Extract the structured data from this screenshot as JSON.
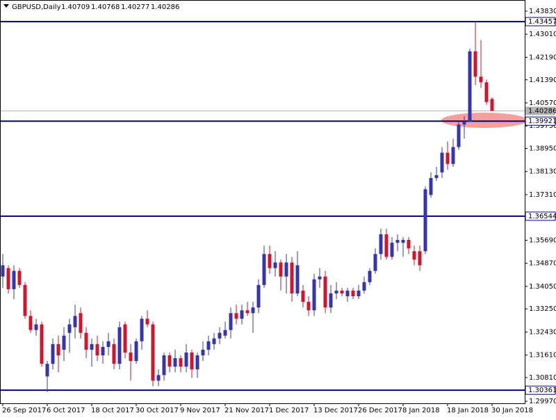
{
  "chart_data": {
    "type": "candlestick",
    "title": "GBPUSD,Daily",
    "up_color": "#3535b0",
    "down_color": "#d2142d",
    "level_color": "#000080",
    "current_color": "#b4b4b4",
    "ylim": [
      1.29896,
      1.44225
    ],
    "yticks": [
      {
        "value": 1.4383,
        "label": "1.43830"
      },
      {
        "value": 1.4301,
        "label": "1.43010"
      },
      {
        "value": 1.4219,
        "label": "1.42190"
      },
      {
        "value": 1.4139,
        "label": "1.41390"
      },
      {
        "value": 1.4057,
        "label": "1.40570"
      },
      {
        "value": 1.3975,
        "label": "1.39750"
      },
      {
        "value": 1.3895,
        "label": "1.38950"
      },
      {
        "value": 1.3813,
        "label": "1.38130"
      },
      {
        "value": 1.3731,
        "label": "1.37310"
      },
      {
        "value": 1.3569,
        "label": "1.35690"
      },
      {
        "value": 1.3487,
        "label": "1.34870"
      },
      {
        "value": 1.3405,
        "label": "1.34050"
      },
      {
        "value": 1.3325,
        "label": "1.33250"
      },
      {
        "value": 1.3243,
        "label": "1.32430"
      },
      {
        "value": 1.3161,
        "label": "1.31610"
      },
      {
        "value": 1.3081,
        "label": "1.30810"
      },
      {
        "value": 1.2997,
        "label": "1.29970"
      }
    ],
    "levels": [
      1.43457,
      1.39921,
      1.36544,
      1.30361
    ],
    "categories": [
      "26 Sep 2017",
      null,
      null,
      null,
      null,
      null,
      null,
      null,
      "6 Oct 2017",
      null,
      null,
      null,
      null,
      null,
      null,
      null,
      "18 Oct 2017",
      null,
      null,
      null,
      null,
      null,
      null,
      null,
      "30 Oct 2017",
      null,
      null,
      null,
      null,
      null,
      null,
      null,
      "9 Nov 2017",
      null,
      null,
      null,
      null,
      null,
      null,
      null,
      "21 Nov 2017",
      null,
      null,
      null,
      null,
      null,
      null,
      null,
      "1 Dec 2017",
      null,
      null,
      null,
      null,
      null,
      null,
      null,
      "13 Dec 2017",
      null,
      null,
      null,
      null,
      null,
      null,
      null,
      "26 Dec 2017",
      null,
      null,
      null,
      null,
      null,
      null,
      null,
      "8 Jan 2018",
      null,
      null,
      null,
      null,
      null,
      null,
      null,
      "18 Jan 2018",
      null,
      null,
      null,
      null,
      null,
      null,
      null,
      "30 Jan 2018"
    ],
    "open": [
      1.344,
      1.347,
      1.3395,
      1.346,
      1.341,
      1.33,
      1.325,
      1.327,
      1.3085,
      1.313,
      1.32,
      1.318,
      1.324,
      1.326,
      1.331,
      1.324,
      1.318,
      1.32,
      1.316,
      1.319,
      1.32,
      1.313,
      1.327,
      1.317,
      1.314,
      1.321,
      1.329,
      1.327,
      1.307,
      1.309,
      1.316,
      1.312,
      1.315,
      1.312,
      1.317,
      1.311,
      1.316,
      1.318,
      1.32,
      1.322,
      1.323,
      1.325,
      1.331,
      1.329,
      1.332,
      1.331,
      1.333,
      1.341,
      1.352,
      1.347,
      1.349,
      1.344,
      1.349,
      1.338,
      1.339,
      1.335,
      1.332,
      1.343,
      1.344,
      1.333,
      1.338,
      1.339,
      1.337,
      1.339,
      1.337,
      1.339,
      1.342,
      1.346,
      1.352,
      1.359,
      1.351,
      1.356,
      1.356,
      1.357,
      1.353,
      1.353,
      1.353,
      1.373,
      1.379,
      1.381,
      1.388,
      1.384,
      1.39,
      1.398,
      1.399,
      1.424,
      1.415,
      1.413,
      1.40709
    ],
    "high": [
      1.352,
      1.348,
      1.348,
      1.347,
      1.342,
      1.332,
      1.329,
      1.328,
      1.314,
      1.322,
      1.323,
      1.326,
      1.329,
      1.334,
      1.333,
      1.326,
      1.322,
      1.323,
      1.321,
      1.324,
      1.322,
      1.328,
      1.328,
      1.32,
      1.322,
      1.33,
      1.332,
      1.328,
      1.311,
      1.317,
      1.317,
      1.318,
      1.316,
      1.32,
      1.318,
      1.317,
      1.321,
      1.323,
      1.324,
      1.326,
      1.328,
      1.333,
      1.334,
      1.334,
      1.335,
      1.335,
      1.343,
      1.355,
      1.355,
      1.353,
      1.35,
      1.352,
      1.351,
      1.353,
      1.341,
      1.337,
      1.345,
      1.347,
      1.346,
      1.341,
      1.342,
      1.34,
      1.34,
      1.34,
      1.341,
      1.344,
      1.347,
      1.354,
      1.361,
      1.361,
      1.358,
      1.359,
      1.358,
      1.358,
      1.355,
      1.355,
      1.376,
      1.381,
      1.383,
      1.39,
      1.392,
      1.393,
      1.399,
      1.401,
      1.425,
      1.4346,
      1.428,
      1.414,
      1.40768
    ],
    "low": [
      1.34,
      1.338,
      1.336,
      1.34,
      1.329,
      1.324,
      1.323,
      1.312,
      1.303,
      1.311,
      1.31,
      1.314,
      1.317,
      1.322,
      1.322,
      1.315,
      1.312,
      1.314,
      1.313,
      1.316,
      1.311,
      1.311,
      1.315,
      1.307,
      1.313,
      1.318,
      1.326,
      1.305,
      1.305,
      1.307,
      1.31,
      1.31,
      1.31,
      1.31,
      1.308,
      1.308,
      1.314,
      1.316,
      1.318,
      1.32,
      1.322,
      1.322,
      1.327,
      1.327,
      1.33,
      1.324,
      1.331,
      1.34,
      1.345,
      1.344,
      1.339,
      1.338,
      1.335,
      1.337,
      1.333,
      1.33,
      1.33,
      1.34,
      1.331,
      1.331,
      1.336,
      1.337,
      1.335,
      1.336,
      1.336,
      1.338,
      1.341,
      1.345,
      1.35,
      1.35,
      1.35,
      1.353,
      1.351,
      1.352,
      1.348,
      1.346,
      1.352,
      1.372,
      1.378,
      1.379,
      1.382,
      1.383,
      1.389,
      1.393,
      1.399,
      1.412,
      1.411,
      1.405,
      1.40277
    ],
    "close": [
      1.348,
      1.3395,
      1.346,
      1.341,
      1.33,
      1.325,
      1.327,
      1.313,
      1.313,
      1.32,
      1.316,
      1.323,
      1.327,
      1.33,
      1.324,
      1.318,
      1.32,
      1.316,
      1.319,
      1.321,
      1.313,
      1.326,
      1.317,
      1.314,
      1.321,
      1.329,
      1.327,
      1.307,
      1.309,
      1.316,
      1.312,
      1.315,
      1.312,
      1.317,
      1.311,
      1.316,
      1.318,
      1.321,
      1.322,
      1.324,
      1.325,
      1.331,
      1.329,
      1.332,
      1.331,
      1.333,
      1.341,
      1.352,
      1.347,
      1.349,
      1.344,
      1.349,
      1.338,
      1.348,
      1.335,
      1.332,
      1.343,
      1.344,
      1.333,
      1.338,
      1.339,
      1.338,
      1.339,
      1.337,
      1.339,
      1.342,
      1.346,
      1.352,
      1.359,
      1.351,
      1.356,
      1.357,
      1.357,
      1.354,
      1.35,
      1.348,
      1.375,
      1.379,
      1.38,
      1.388,
      1.384,
      1.39,
      1.398,
      1.399,
      1.424,
      1.415,
      1.413,
      1.406,
      1.40286
    ]
  }
}
